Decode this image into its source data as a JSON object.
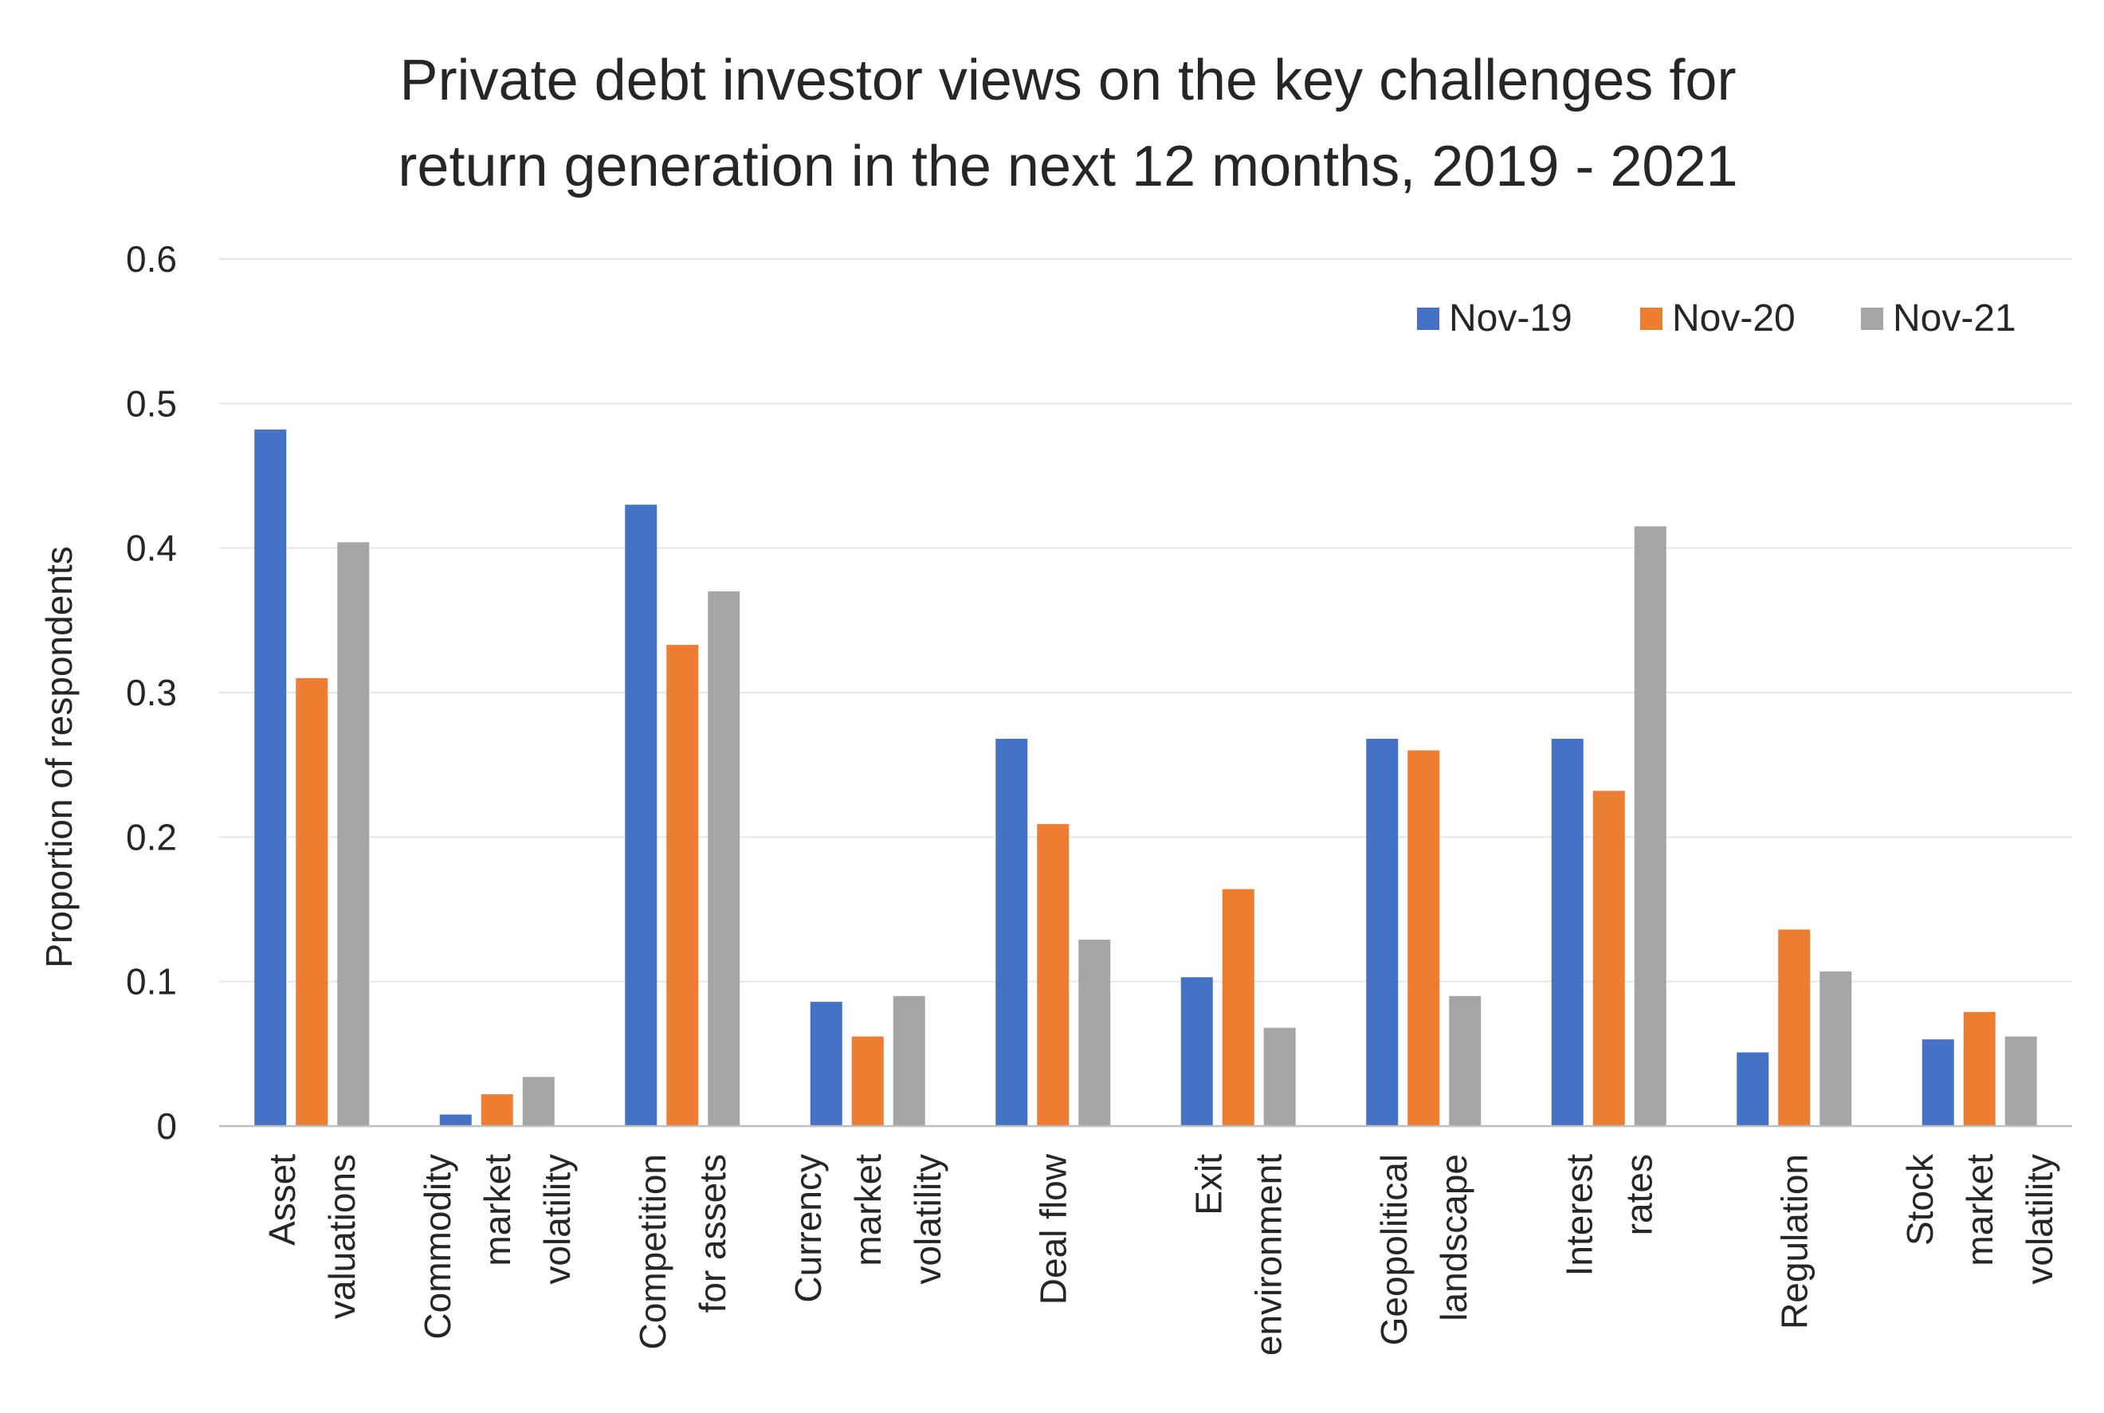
{
  "chart_data": {
    "type": "bar",
    "title": "Private debt investor views on the key challenges for return generation in the next 12 months, 2019 - 2021",
    "title_lines": [
      "Private debt investor views on the key challenges for",
      "return generation in the next 12 months, 2019 - 2021"
    ],
    "xlabel": "",
    "ylabel": "Proportion of respondents",
    "ylim": [
      0,
      0.6
    ],
    "yticks": [
      "0",
      "0.1",
      "0.2",
      "0.3",
      "0.4",
      "0.5",
      "0.6"
    ],
    "grid": true,
    "legend_position": "top-right",
    "categories": [
      [
        "Asset",
        "valuations"
      ],
      [
        "Commodity",
        "market",
        "volatility"
      ],
      [
        "Competition",
        "for assets"
      ],
      [
        "Currency",
        "market",
        "volatility"
      ],
      [
        "Deal flow"
      ],
      [
        "Exit",
        "environment"
      ],
      [
        "Geopolitical",
        "landscape"
      ],
      [
        "Interest",
        "rates"
      ],
      [
        "Regulation"
      ],
      [
        "Stock",
        "market",
        "volatility"
      ]
    ],
    "series": [
      {
        "name": "Nov-19",
        "color": "#4472c4",
        "values": [
          0.482,
          0.008,
          0.43,
          0.086,
          0.268,
          0.103,
          0.268,
          0.268,
          0.051,
          0.06
        ]
      },
      {
        "name": "Nov-20",
        "color": "#ed7d31",
        "values": [
          0.31,
          0.022,
          0.333,
          0.062,
          0.209,
          0.164,
          0.26,
          0.232,
          0.136,
          0.079
        ]
      },
      {
        "name": "Nov-21",
        "color": "#a5a5a5",
        "values": [
          0.404,
          0.034,
          0.37,
          0.09,
          0.129,
          0.068,
          0.09,
          0.415,
          0.107,
          0.062
        ]
      }
    ]
  }
}
